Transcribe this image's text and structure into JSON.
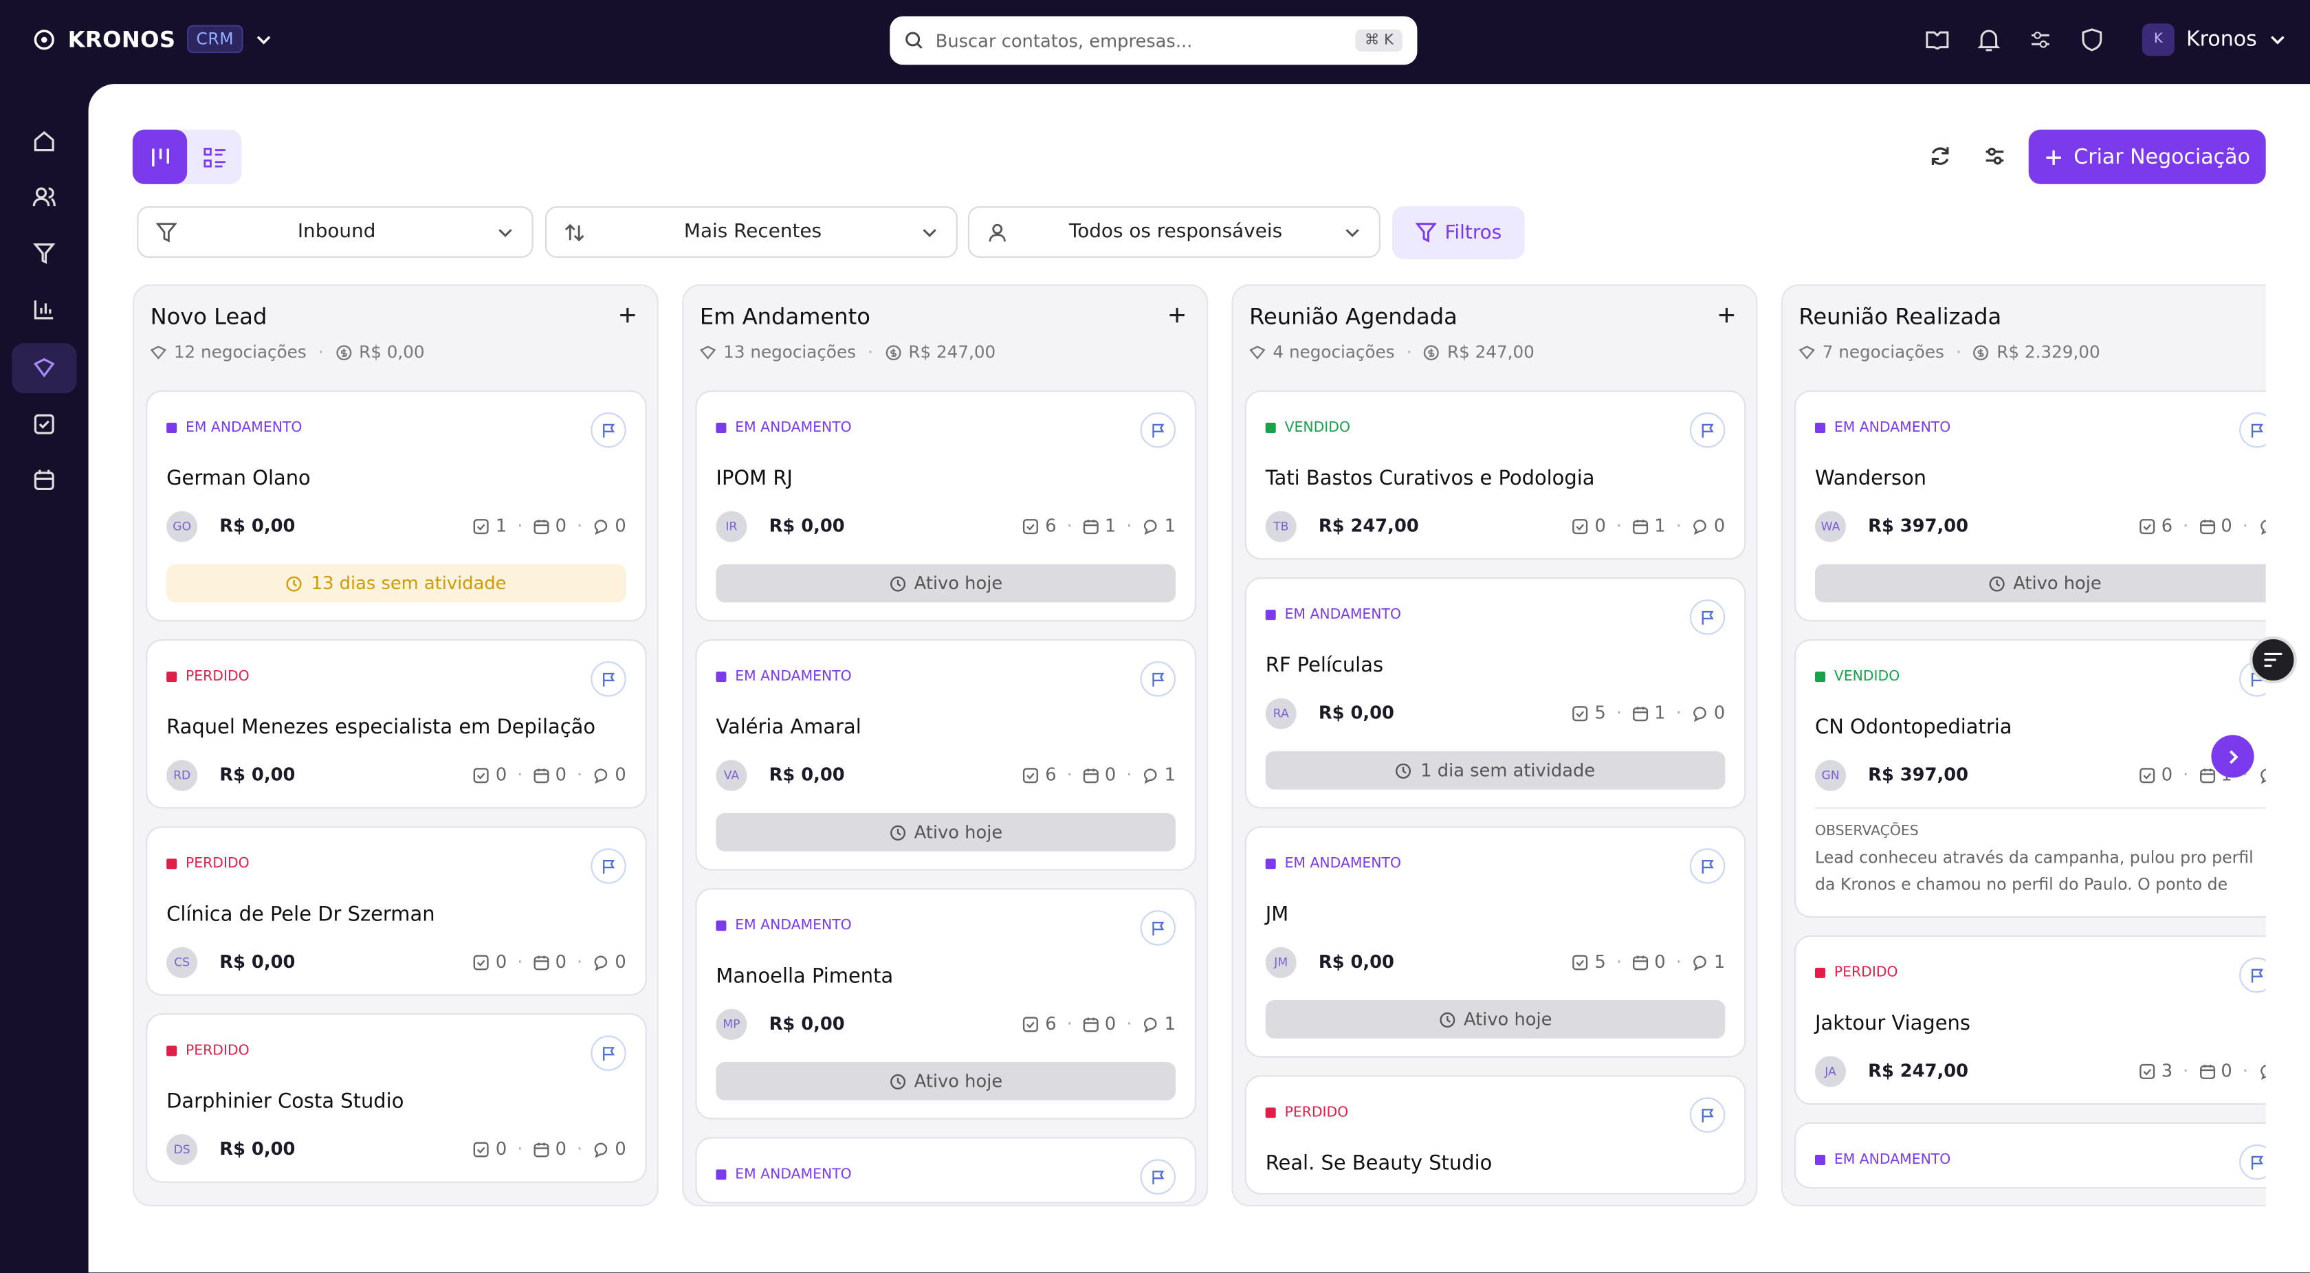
{
  "header": {
    "brand": "KRONOS",
    "badge": "CRM",
    "search_placeholder": "Buscar contatos, empresas...",
    "shortcut": "⌘ K",
    "user_initial": "K",
    "user": "Kronos"
  },
  "toolbar": {
    "create_button": "Criar Negociação",
    "filters": [
      "Inbound",
      "Mais Recentes",
      "Todos os responsáveis"
    ],
    "filter_button": "Filtros"
  },
  "columns": [
    {
      "title": "Novo Lead",
      "count": "12 negociações",
      "total": "R$ 0,00",
      "cards": [
        {
          "status": "EM ANDAMENTO",
          "status_color": "#7c3aed",
          "name": "German Olano",
          "initials": "GO",
          "value": "R$ 0,00",
          "tasks": "1",
          "meetings": "0",
          "comments": "0",
          "activity": "13 dias sem atividade",
          "activity_style": "warning"
        },
        {
          "status": "PERDIDO",
          "status_color": "#e11d48",
          "name": "Raquel Menezes especialista em Depilação",
          "initials": "RD",
          "value": "R$ 0,00",
          "tasks": "0",
          "meetings": "0",
          "comments": "0"
        },
        {
          "status": "PERDIDO",
          "status_color": "#e11d48",
          "name": "Clínica de Pele Dr Szerman",
          "initials": "CS",
          "value": "R$ 0,00",
          "tasks": "0",
          "meetings": "0",
          "comments": "0"
        },
        {
          "status": "PERDIDO",
          "status_color": "#e11d48",
          "name": "Darphinier Costa Studio",
          "initials": "DS",
          "value": "R$ 0,00",
          "tasks": "0",
          "meetings": "0",
          "comments": "0"
        }
      ]
    },
    {
      "title": "Em Andamento",
      "count": "13 negociações",
      "total": "R$ 247,00",
      "cards": [
        {
          "status": "EM ANDAMENTO",
          "status_color": "#7c3aed",
          "name": "IPOM RJ",
          "initials": "IR",
          "value": "R$ 0,00",
          "tasks": "6",
          "meetings": "1",
          "comments": "1",
          "activity": "Ativo hoje",
          "activity_style": "neutral"
        },
        {
          "status": "EM ANDAMENTO",
          "status_color": "#7c3aed",
          "name": "Valéria Amaral",
          "initials": "VA",
          "value": "R$ 0,00",
          "tasks": "6",
          "meetings": "0",
          "comments": "1",
          "activity": "Ativo hoje",
          "activity_style": "neutral"
        },
        {
          "status": "EM ANDAMENTO",
          "status_color": "#7c3aed",
          "name": "Manoella Pimenta",
          "initials": "MP",
          "value": "R$ 0,00",
          "tasks": "6",
          "meetings": "0",
          "comments": "1",
          "activity": "Ativo hoje",
          "activity_style": "neutral"
        },
        {
          "status": "EM ANDAMENTO",
          "status_color": "#7c3aed"
        }
      ]
    },
    {
      "title": "Reunião Agendada",
      "count": "4 negociações",
      "total": "R$ 247,00",
      "cards": [
        {
          "status": "VENDIDO",
          "status_color": "#16a34a",
          "name": "Tati Bastos Curativos e Podologia",
          "initials": "TB",
          "value": "R$ 247,00",
          "tasks": "0",
          "meetings": "1",
          "comments": "0"
        },
        {
          "status": "EM ANDAMENTO",
          "status_color": "#7c3aed",
          "name": "RF Películas",
          "initials": "RA",
          "value": "R$ 0,00",
          "tasks": "5",
          "meetings": "1",
          "comments": "0",
          "activity": "1 dia sem atividade",
          "activity_style": "neutral"
        },
        {
          "status": "EM ANDAMENTO",
          "status_color": "#7c3aed",
          "name": "JM",
          "initials": "JM",
          "value": "R$ 0,00",
          "tasks": "5",
          "meetings": "0",
          "comments": "1",
          "activity": "Ativo hoje",
          "activity_style": "neutral"
        },
        {
          "status": "PERDIDO",
          "status_color": "#e11d48",
          "name": "Real. Se Beauty Studio"
        }
      ]
    },
    {
      "title": "Reunião Realizada",
      "count": "7 negociações",
      "total": "R$ 2.329,00",
      "cards": [
        {
          "status": "EM ANDAMENTO",
          "status_color": "#7c3aed",
          "name": "Wanderson",
          "initials": "WA",
          "value": "R$ 397,00",
          "tasks": "6",
          "meetings": "0",
          "activity": "Ativo hoje",
          "activity_style": "neutral"
        },
        {
          "status": "VENDIDO",
          "status_color": "#16a34a",
          "name": "CN Odontopediatria",
          "initials": "GN",
          "value": "R$ 397,00",
          "tasks": "0",
          "meetings": "1",
          "notes_label": "OBSERVAÇÕES",
          "notes": "Lead conheceu através da campanha, pulou pro perfil da Kronos e chamou no perfil do Paulo. O ponto de conexão..."
        },
        {
          "status": "PERDIDO",
          "status_color": "#e11d48",
          "name": "Jaktour Viagens",
          "initials": "JA",
          "value": "R$ 247,00",
          "tasks": "3",
          "meetings": "0"
        },
        {
          "status": "EM ANDAMENTO",
          "status_color": "#7c3aed"
        }
      ]
    }
  ]
}
